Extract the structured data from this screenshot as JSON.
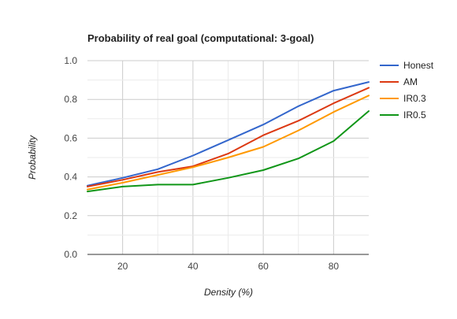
{
  "chart_data": {
    "type": "line",
    "title": "Probability of real goal (computational: 3-goal)",
    "xlabel": "Density (%)",
    "ylabel": "Probability",
    "xlim": [
      10,
      90
    ],
    "ylim": [
      0,
      1
    ],
    "xticks": [
      20,
      40,
      60,
      80
    ],
    "yticks": [
      "0.0",
      "0.2",
      "0.4",
      "0.6",
      "0.8",
      "1.0"
    ],
    "grid": true,
    "legend_position": "right",
    "x": [
      10,
      20,
      30,
      40,
      50,
      60,
      70,
      80,
      90
    ],
    "series": [
      {
        "name": "Honest",
        "color": "#3366cc",
        "values": [
          0.355,
          0.395,
          0.44,
          0.51,
          0.59,
          0.67,
          0.765,
          0.845,
          0.89
        ]
      },
      {
        "name": "AM",
        "color": "#dc3912",
        "values": [
          0.35,
          0.385,
          0.425,
          0.455,
          0.52,
          0.615,
          0.69,
          0.78,
          0.86
        ]
      },
      {
        "name": "IR0.3",
        "color": "#ff9900",
        "values": [
          0.335,
          0.37,
          0.41,
          0.45,
          0.5,
          0.555,
          0.64,
          0.735,
          0.82
        ]
      },
      {
        "name": "IR0.5",
        "color": "#109618",
        "values": [
          0.325,
          0.35,
          0.36,
          0.36,
          0.395,
          0.435,
          0.495,
          0.585,
          0.74
        ]
      }
    ]
  }
}
